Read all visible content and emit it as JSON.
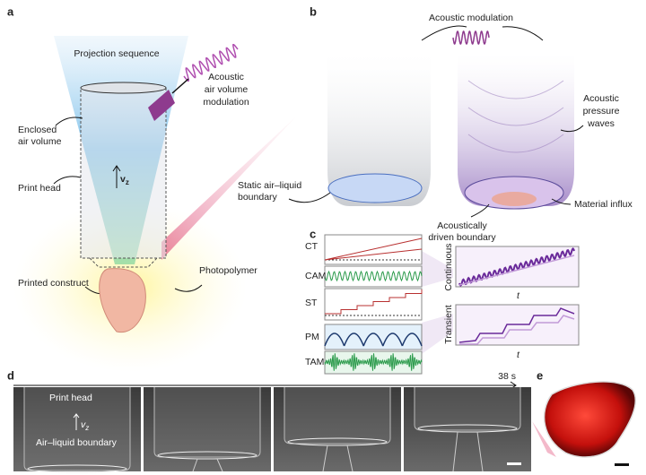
{
  "panel_labels": {
    "a": "a",
    "b": "b",
    "c": "c",
    "d": "d",
    "e": "e"
  },
  "a": {
    "projection": "Projection sequence",
    "acoustic": [
      "Acoustic",
      "air volume",
      "modulation"
    ],
    "enclosed": [
      "Enclosed",
      "air volume"
    ],
    "print_head": "Print head",
    "velocity": {
      "main": "v",
      "sub": "z"
    },
    "printed_construct": "Printed construct",
    "photopolymer": "Photopolymer"
  },
  "b": {
    "modulation": "Acoustic modulation",
    "pressure": [
      "Acoustic",
      "pressure",
      "waves"
    ],
    "static": [
      "Static air–liquid",
      "boundary"
    ],
    "driven": [
      "Acoustically",
      "driven boundary"
    ],
    "influx": "Material influx"
  },
  "c": {
    "rows": [
      "CT",
      "CAM",
      "ST",
      "PM",
      "TAM"
    ],
    "continuous": {
      "ylabel": "Continuous",
      "xlabel": "t"
    },
    "transient": {
      "ylabel": "Transient",
      "xlabel": "t"
    }
  },
  "d": {
    "duration": "38 s",
    "print_head": "Print head",
    "velocity": {
      "main": "v",
      "sub": "z"
    },
    "boundary": "Air–liquid boundary"
  }
}
